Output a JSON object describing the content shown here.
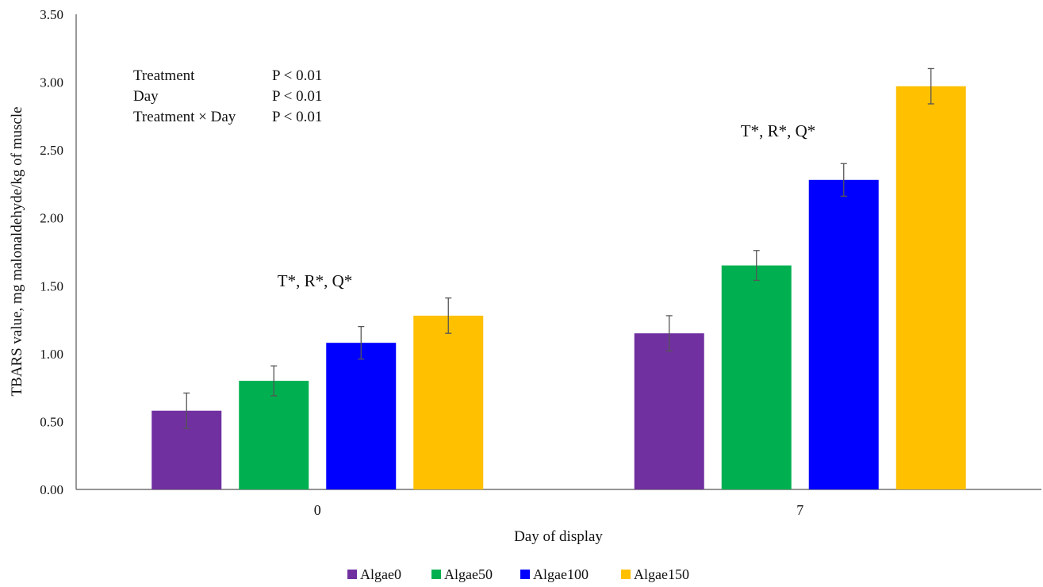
{
  "chart_data": {
    "type": "bar",
    "title": "",
    "xlabel": "Day of display",
    "ylabel": "TBARS value, mg malonaldehyde/kg of muscle",
    "categories": [
      "0",
      "7"
    ],
    "ylim": [
      0,
      3.5
    ],
    "yticks": [
      "0.00",
      "0.50",
      "1.00",
      "1.50",
      "2.00",
      "2.50",
      "3.00",
      "3.50"
    ],
    "grid": false,
    "legend_position": "bottom",
    "series": [
      {
        "name": "Algae0",
        "color": "#7030A0",
        "values": [
          0.58,
          1.15
        ],
        "errors": [
          0.13,
          0.13
        ]
      },
      {
        "name": "Algae50",
        "color": "#00B050",
        "values": [
          0.8,
          1.65
        ],
        "errors": [
          0.11,
          0.11
        ]
      },
      {
        "name": "Algae100",
        "color": "#0000FF",
        "values": [
          1.08,
          2.28
        ],
        "errors": [
          0.12,
          0.12
        ]
      },
      {
        "name": "Algae150",
        "color": "#FFC000",
        "values": [
          1.28,
          2.97
        ],
        "errors": [
          0.13,
          0.13
        ]
      }
    ],
    "group_annotations": [
      "T*, R*, Q*",
      "T*, R*, Q*"
    ],
    "stats_table": [
      {
        "effect": "Treatment",
        "p": "P < 0.01"
      },
      {
        "effect": "Day",
        "p": "P < 0.01"
      },
      {
        "effect": "Treatment × Day",
        "p": "P < 0.01"
      }
    ]
  }
}
